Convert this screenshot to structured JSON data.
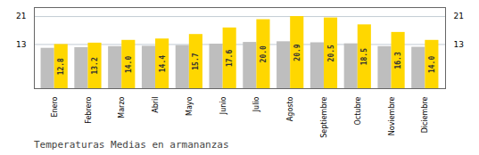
{
  "chart_data": {
    "type": "bar",
    "title": "Temperaturas Medias en armananzas",
    "categories": [
      "Enero",
      "Febrero",
      "Marzo",
      "Abril",
      "Mayo",
      "Junio",
      "Julio",
      "Agosto",
      "Septiembre",
      "Octubre",
      "Noviembre",
      "Diciembre"
    ],
    "series": [
      {
        "color": "#BEBEBE",
        "values": [
          11.7,
          11.9,
          12.2,
          12.3,
          12.5,
          12.9,
          13.4,
          13.6,
          13.3,
          13.0,
          12.2,
          12.0
        ]
      },
      {
        "color": "#FFD700",
        "values": [
          12.8,
          13.2,
          14.0,
          14.4,
          15.7,
          17.6,
          20.0,
          20.9,
          20.5,
          18.5,
          16.3,
          14.0
        ],
        "data_labels": true,
        "value_labels": [
          "12.8",
          "13.2",
          "14.0",
          "14.4",
          "15.7",
          "17.6",
          "20.0",
          "20.9",
          "20.5",
          "18.5",
          "16.3",
          "14.0"
        ]
      }
    ],
    "ylim": [
      0,
      23.5
    ],
    "yticks": [
      12.8,
      20.9
    ],
    "grid": true
  }
}
